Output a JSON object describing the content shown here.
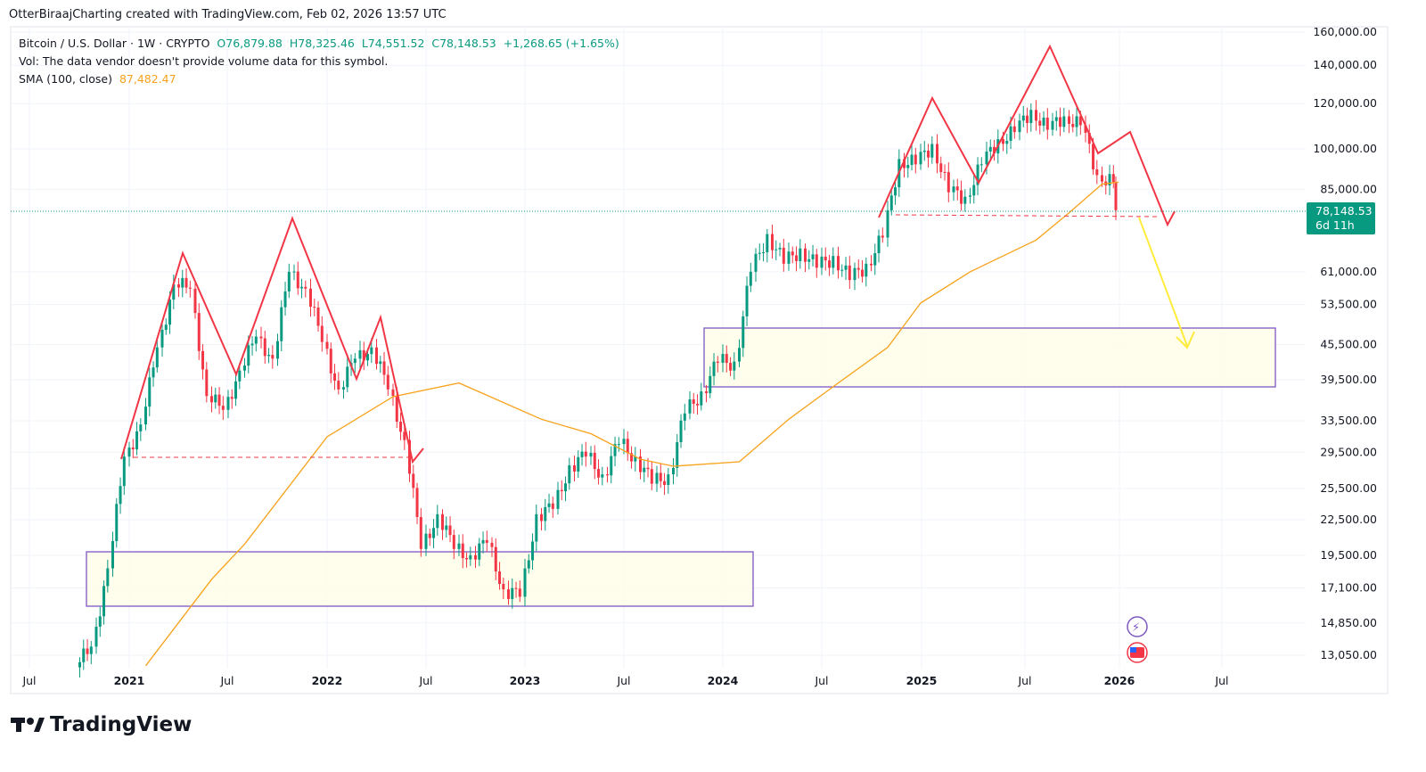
{
  "header": {
    "attribution": "OtterBiraajCharting created with TradingView.com, Feb 02, 2026 13:57 UTC"
  },
  "legend": {
    "symbol": "Bitcoin / U.S. Dollar · 1W · CRYPTO",
    "open": "O76,879.88",
    "high": "H78,325.46",
    "low": "L74,551.52",
    "close": "C78,148.53",
    "change": "+1,268.65 (+1.65%)",
    "vol": "Vol: The data vendor doesn't provide volume data for this symbol.",
    "sma_label": "SMA (100, close)",
    "sma_value": "87,482.47"
  },
  "price_tag": {
    "price": "78,148.53",
    "countdown": "6d 11h"
  },
  "branding": {
    "logo": "TradingView"
  },
  "colors": {
    "up": "#089981",
    "down": "#f23645",
    "sma": "#f7a21b",
    "pattern": "#f23645",
    "box": "#7e57c2",
    "arrow": "#ffeb3b"
  },
  "chart_data": {
    "type": "candlestick",
    "scale": "log",
    "ylim": [
      13050,
      160000
    ],
    "y_ticks": [
      "160,000.00",
      "140,000.00",
      "120,000.00",
      "100,000.00",
      "85,000.00",
      "61,000.00",
      "53,500.00",
      "45,500.00",
      "39,500.00",
      "33,500.00",
      "29,500.00",
      "25,500.00",
      "22,500.00",
      "19,500.00",
      "17,100.00",
      "14,850.00",
      "13,050.00"
    ],
    "x_ticks": [
      "Jul",
      "2021",
      "Jul",
      "2022",
      "Jul",
      "2023",
      "Jul",
      "2024",
      "Jul",
      "2025",
      "Jul",
      "2026",
      "Jul"
    ],
    "monthly_closes": [
      [
        "2020-10",
        13500
      ],
      [
        "2020-11",
        18500
      ],
      [
        "2020-12",
        29000
      ],
      [
        "2021-01",
        33000
      ],
      [
        "2021-02",
        45000
      ],
      [
        "2021-03",
        58000
      ],
      [
        "2021-04",
        57000
      ],
      [
        "2021-05",
        37000
      ],
      [
        "2021-06",
        35000
      ],
      [
        "2021-07",
        41000
      ],
      [
        "2021-08",
        47000
      ],
      [
        "2021-09",
        43000
      ],
      [
        "2021-10",
        61000
      ],
      [
        "2021-11",
        57000
      ],
      [
        "2021-12",
        46000
      ],
      [
        "2022-01",
        38000
      ],
      [
        "2022-02",
        43000
      ],
      [
        "2022-03",
        45000
      ],
      [
        "2022-04",
        38000
      ],
      [
        "2022-05",
        31000
      ],
      [
        "2022-06",
        20000
      ],
      [
        "2022-07",
        23000
      ],
      [
        "2022-08",
        20000
      ],
      [
        "2022-09",
        19500
      ],
      [
        "2022-10",
        20500
      ],
      [
        "2022-11",
        17000
      ],
      [
        "2022-12",
        16500
      ],
      [
        "2023-01",
        23000
      ],
      [
        "2023-02",
        23500
      ],
      [
        "2023-03",
        28000
      ],
      [
        "2023-04",
        29000
      ],
      [
        "2023-05",
        27000
      ],
      [
        "2023-06",
        30500
      ],
      [
        "2023-07",
        29000
      ],
      [
        "2023-08",
        26000
      ],
      [
        "2023-09",
        27000
      ],
      [
        "2023-10",
        34500
      ],
      [
        "2023-11",
        37700
      ],
      [
        "2023-12",
        42300
      ],
      [
        "2024-01",
        42500
      ],
      [
        "2024-02",
        61000
      ],
      [
        "2024-03",
        71000
      ],
      [
        "2024-04",
        63000
      ],
      [
        "2024-05",
        67000
      ],
      [
        "2024-06",
        62000
      ],
      [
        "2024-07",
        65000
      ],
      [
        "2024-08",
        59000
      ],
      [
        "2024-09",
        63000
      ],
      [
        "2024-10",
        70000
      ],
      [
        "2024-11",
        96000
      ],
      [
        "2024-12",
        94000
      ],
      [
        "2025-01",
        102000
      ],
      [
        "2025-02",
        84000
      ],
      [
        "2025-03",
        82500
      ],
      [
        "2025-04",
        94000
      ],
      [
        "2025-05",
        104000
      ],
      [
        "2025-06",
        107000
      ],
      [
        "2025-07",
        117000
      ],
      [
        "2025-08",
        108000
      ],
      [
        "2025-09",
        114000
      ],
      [
        "2025-10",
        110000
      ],
      [
        "2025-11",
        90000
      ],
      [
        "2025-12",
        87500
      ],
      [
        "2026-01",
        78148.53
      ]
    ],
    "sma_100": [
      [
        "2021-02",
        12500
      ],
      [
        "2021-06",
        17700
      ],
      [
        "2021-08",
        20400
      ],
      [
        "2022-01",
        31400
      ],
      [
        "2022-05",
        36900
      ],
      [
        "2022-09",
        39000
      ],
      [
        "2023-02",
        33700
      ],
      [
        "2023-05",
        31800
      ],
      [
        "2023-08",
        28700
      ],
      [
        "2023-10",
        27900
      ],
      [
        "2024-02",
        28400
      ],
      [
        "2024-05",
        33700
      ],
      [
        "2024-08",
        39000
      ],
      [
        "2024-11",
        45000
      ],
      [
        "2025-01",
        53800
      ],
      [
        "2025-04",
        61000
      ],
      [
        "2025-08",
        69300
      ],
      [
        "2025-10",
        77300
      ],
      [
        "2025-12",
        86800
      ],
      [
        "2026-01",
        87482.47
      ]
    ],
    "last_price": 78148.53
  }
}
